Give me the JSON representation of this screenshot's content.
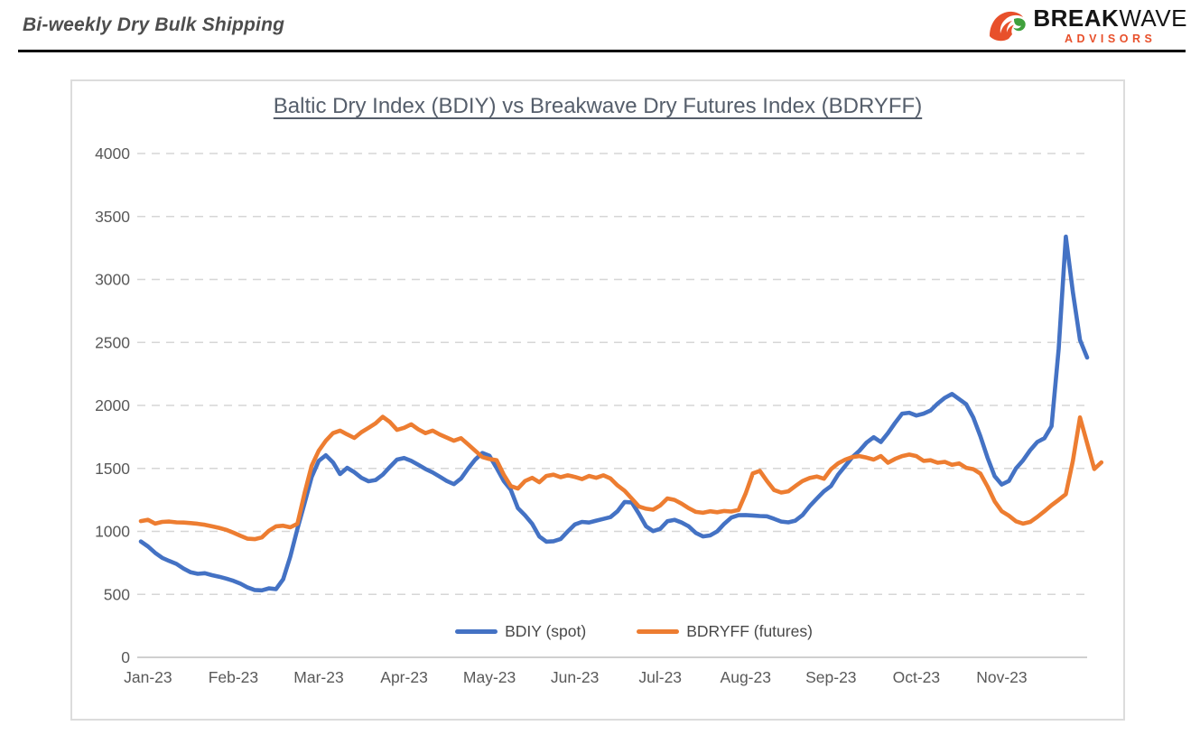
{
  "header": {
    "title": "Bi-weekly Dry Bulk Shipping"
  },
  "logo": {
    "brand_bold": "BREAK",
    "brand_light": "WAVE",
    "subtitle": "ADVISORS",
    "orange": "#e8502b",
    "green": "#3fa03c",
    "black": "#151515",
    "icon": "breakwave-wave-icon"
  },
  "chart_data": {
    "type": "line",
    "title": "Baltic Dry Index (BDIY) vs Breakwave Dry Futures Index (BDRYFF)",
    "xlabel": "",
    "ylabel": "",
    "ylim": [
      0,
      4000
    ],
    "y_ticks": [
      0,
      500,
      1000,
      1500,
      2000,
      2500,
      3000,
      3500,
      4000
    ],
    "x_tick_labels": [
      "Jan-23",
      "Feb-23",
      "Mar-23",
      "Apr-23",
      "May-23",
      "Jun-23",
      "Jul-23",
      "Aug-23",
      "Sep-23",
      "Oct-23",
      "Nov-23"
    ],
    "points_per_month": 12,
    "first_tick_index": 1,
    "grid": "dashed-horizontal",
    "grid_color": "#d6d6d6",
    "axis_color": "#bfbfbf",
    "tick_label_color": "#595959",
    "legend_position": "bottom-inside",
    "series": [
      {
        "name": "BDIY (spot)",
        "color": "#4472c4",
        "values": [
          920,
          880,
          830,
          790,
          765,
          742,
          705,
          675,
          663,
          668,
          652,
          640,
          625,
          608,
          585,
          555,
          535,
          532,
          548,
          542,
          620,
          800,
          1020,
          1220,
          1430,
          1560,
          1604,
          1548,
          1455,
          1505,
          1470,
          1425,
          1398,
          1408,
          1450,
          1512,
          1570,
          1583,
          1560,
          1528,
          1495,
          1468,
          1435,
          1400,
          1375,
          1420,
          1500,
          1570,
          1622,
          1600,
          1503,
          1400,
          1330,
          1184,
          1127,
          1060,
          960,
          918,
          922,
          940,
          1000,
          1055,
          1075,
          1070,
          1085,
          1099,
          1113,
          1160,
          1234,
          1230,
          1140,
          1040,
          1002,
          1020,
          1080,
          1092,
          1070,
          1040,
          988,
          960,
          968,
          1000,
          1060,
          1110,
          1128,
          1130,
          1126,
          1122,
          1120,
          1100,
          1078,
          1072,
          1085,
          1130,
          1200,
          1260,
          1318,
          1360,
          1450,
          1520,
          1590,
          1640,
          1705,
          1748,
          1710,
          1780,
          1860,
          1935,
          1942,
          1920,
          1935,
          1960,
          2015,
          2060,
          2091,
          2050,
          2010,
          1905,
          1755,
          1585,
          1438,
          1372,
          1400,
          1500,
          1565,
          1645,
          1710,
          1740,
          1835,
          2450,
          3340,
          2900,
          2520,
          2380
        ]
      },
      {
        "name": "BDRYFF (futures)",
        "color": "#ed7d31",
        "values": [
          1082,
          1092,
          1062,
          1075,
          1078,
          1072,
          1070,
          1066,
          1060,
          1052,
          1040,
          1028,
          1012,
          990,
          965,
          942,
          938,
          952,
          1005,
          1040,
          1045,
          1032,
          1060,
          1300,
          1520,
          1640,
          1720,
          1780,
          1800,
          1770,
          1742,
          1788,
          1822,
          1858,
          1910,
          1868,
          1806,
          1822,
          1850,
          1810,
          1780,
          1800,
          1770,
          1745,
          1720,
          1740,
          1690,
          1640,
          1590,
          1574,
          1565,
          1450,
          1360,
          1340,
          1400,
          1425,
          1390,
          1440,
          1450,
          1430,
          1445,
          1432,
          1415,
          1440,
          1425,
          1445,
          1420,
          1365,
          1322,
          1260,
          1198,
          1180,
          1172,
          1206,
          1262,
          1250,
          1220,
          1184,
          1155,
          1148,
          1160,
          1152,
          1162,
          1158,
          1170,
          1300,
          1460,
          1480,
          1400,
          1328,
          1308,
          1318,
          1360,
          1400,
          1424,
          1436,
          1418,
          1494,
          1540,
          1570,
          1590,
          1598,
          1586,
          1570,
          1598,
          1545,
          1575,
          1598,
          1610,
          1598,
          1560,
          1565,
          1545,
          1552,
          1528,
          1540,
          1505,
          1494,
          1459,
          1356,
          1238,
          1160,
          1125,
          1080,
          1062,
          1075,
          1115,
          1160,
          1208,
          1250,
          1295,
          1560,
          1905,
          1700,
          1495,
          1548
        ]
      }
    ]
  }
}
